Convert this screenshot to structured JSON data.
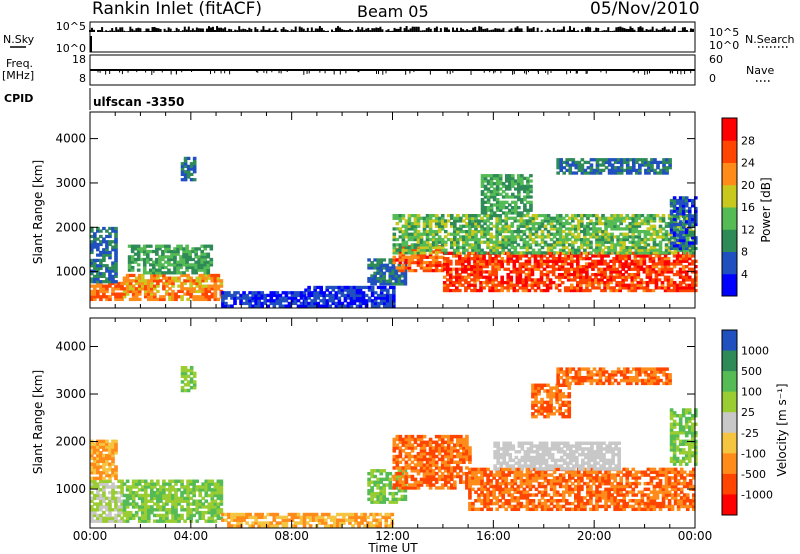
{
  "header": {
    "station": "Rankin Inlet (fitACF)",
    "beam": "Beam 05",
    "date": "05/Nov/2010"
  },
  "labels": {
    "nsky": "N.Sky",
    "nsearch": "N.Search",
    "freq": "Freq.",
    "freq_unit": "[MHz]",
    "nave": "Nave",
    "cpid": "CPID",
    "scan": "ulfscan -3350",
    "xlabel": "Time UT",
    "ylabel": "Slant Range [km]",
    "power_label": "Power [dB]",
    "velocity_label": "Velocity [m s⁻¹]"
  },
  "chart_data": [
    {
      "type": "line",
      "panel": "noise",
      "left_ticks": [
        "10^5",
        "10^0"
      ],
      "right_ticks": [
        "10^5",
        "10^0"
      ],
      "series": [
        {
          "name": "N.Sky",
          "style": "solid black",
          "level": "high, near 10^5"
        },
        {
          "name": "N.Search",
          "style": "dotted black"
        }
      ]
    },
    {
      "type": "line",
      "panel": "frequency",
      "left_ticks": [
        "18",
        "8"
      ],
      "right_ticks": [
        "60",
        "0"
      ],
      "series": [
        {
          "name": "Freq. [MHz]",
          "value_approx": 11
        },
        {
          "name": "Nave",
          "style": "dotted black"
        }
      ]
    },
    {
      "type": "heatmap",
      "panel": "power",
      "xlabel": "Time UT",
      "ylabel": "Slant Range [km]",
      "x_ticks": [
        "00:00",
        "04:00",
        "08:00",
        "12:00",
        "16:00",
        "20:00",
        "00:00"
      ],
      "xlim_hours": [
        0,
        24
      ],
      "y_ticks": [
        1000,
        2000,
        3000,
        4000
      ],
      "ylim_km": [
        180,
        4600
      ],
      "colorbar": {
        "label": "Power [dB]",
        "ticks": [
          4,
          8,
          12,
          16,
          20,
          24,
          28
        ],
        "colors": [
          "#0000ff",
          "#2050c0",
          "#2e8b57",
          "#55bb55",
          "#c8c81e",
          "#ff8c1a",
          "#ff4500",
          "#ff0000"
        ]
      },
      "bands": [
        {
          "t0": 0.0,
          "t1": 1.3,
          "r0": 350,
          "r1": 750,
          "level": 24
        },
        {
          "t0": 0.0,
          "t1": 1.0,
          "r0": 750,
          "r1": 2000,
          "level": 8
        },
        {
          "t0": 1.3,
          "t1": 5.2,
          "r0": 350,
          "r1": 950,
          "level": 22
        },
        {
          "t0": 1.5,
          "t1": 4.8,
          "r0": 950,
          "r1": 1600,
          "level": 12
        },
        {
          "t0": 3.6,
          "t1": 4.2,
          "r0": 3050,
          "r1": 3550,
          "level": 8
        },
        {
          "t0": 5.2,
          "t1": 8.5,
          "r0": 200,
          "r1": 550,
          "level": 4
        },
        {
          "t0": 8.5,
          "t1": 12.0,
          "r0": 200,
          "r1": 650,
          "level": 4
        },
        {
          "t0": 11.0,
          "t1": 12.5,
          "r0": 700,
          "r1": 1300,
          "level": 8
        },
        {
          "t0": 12.0,
          "t1": 14.0,
          "r0": 1000,
          "r1": 1600,
          "level": 25
        },
        {
          "t0": 14.0,
          "t1": 24.0,
          "r0": 550,
          "r1": 1400,
          "level": 27
        },
        {
          "t0": 12.0,
          "t1": 24.0,
          "r0": 1400,
          "r1": 2300,
          "level": 14
        },
        {
          "t0": 15.5,
          "t1": 17.5,
          "r0": 2300,
          "r1": 3200,
          "level": 12
        },
        {
          "t0": 18.5,
          "t1": 23.0,
          "r0": 3200,
          "r1": 3550,
          "level": 8
        },
        {
          "t0": 23.0,
          "t1": 24.0,
          "r0": 1500,
          "r1": 2700,
          "level": 6
        }
      ]
    },
    {
      "type": "heatmap",
      "panel": "velocity",
      "xlabel": "Time UT",
      "ylabel": "Slant Range [km]",
      "x_ticks": [
        "00:00",
        "04:00",
        "08:00",
        "12:00",
        "16:00",
        "20:00",
        "00:00"
      ],
      "xlim_hours": [
        0,
        24
      ],
      "y_ticks": [
        1000,
        2000,
        3000,
        4000
      ],
      "ylim_km": [
        180,
        4600
      ],
      "colorbar": {
        "label": "Velocity [m s⁻¹]",
        "ticks": [
          1000,
          500,
          100,
          25,
          -25,
          -100,
          -500,
          -1000
        ],
        "colors": [
          "#2050c0",
          "#2e8b57",
          "#55bb55",
          "#9acd32",
          "#c8c8c8",
          "#f5c542",
          "#ff8c1a",
          "#ff4500",
          "#ff0000"
        ]
      },
      "bands": [
        {
          "t0": 0.0,
          "t1": 1.3,
          "r0": 300,
          "r1": 1200,
          "level": 25
        },
        {
          "t0": 1.3,
          "t1": 5.2,
          "r0": 300,
          "r1": 1200,
          "level": 100
        },
        {
          "t0": 0.0,
          "t1": 1.0,
          "r0": 1200,
          "r1": 2000,
          "level": -100
        },
        {
          "t0": 3.6,
          "t1": 4.2,
          "r0": 3050,
          "r1": 3550,
          "level": 100
        },
        {
          "t0": 5.2,
          "t1": 12.0,
          "r0": 200,
          "r1": 500,
          "level": -100
        },
        {
          "t0": 11.0,
          "t1": 12.5,
          "r0": 700,
          "r1": 1400,
          "level": 100
        },
        {
          "t0": 12.0,
          "t1": 15.0,
          "r0": 1000,
          "r1": 2100,
          "level": -500
        },
        {
          "t0": 15.0,
          "t1": 24.0,
          "r0": 550,
          "r1": 1400,
          "level": -500
        },
        {
          "t0": 16.0,
          "t1": 21.0,
          "r0": 1400,
          "r1": 2000,
          "level": 0
        },
        {
          "t0": 17.5,
          "t1": 19.0,
          "r0": 2500,
          "r1": 3200,
          "level": -500
        },
        {
          "t0": 18.5,
          "t1": 23.0,
          "r0": 3200,
          "r1": 3550,
          "level": -500
        },
        {
          "t0": 23.0,
          "t1": 24.0,
          "r0": 1500,
          "r1": 2700,
          "level": 100
        }
      ]
    }
  ]
}
